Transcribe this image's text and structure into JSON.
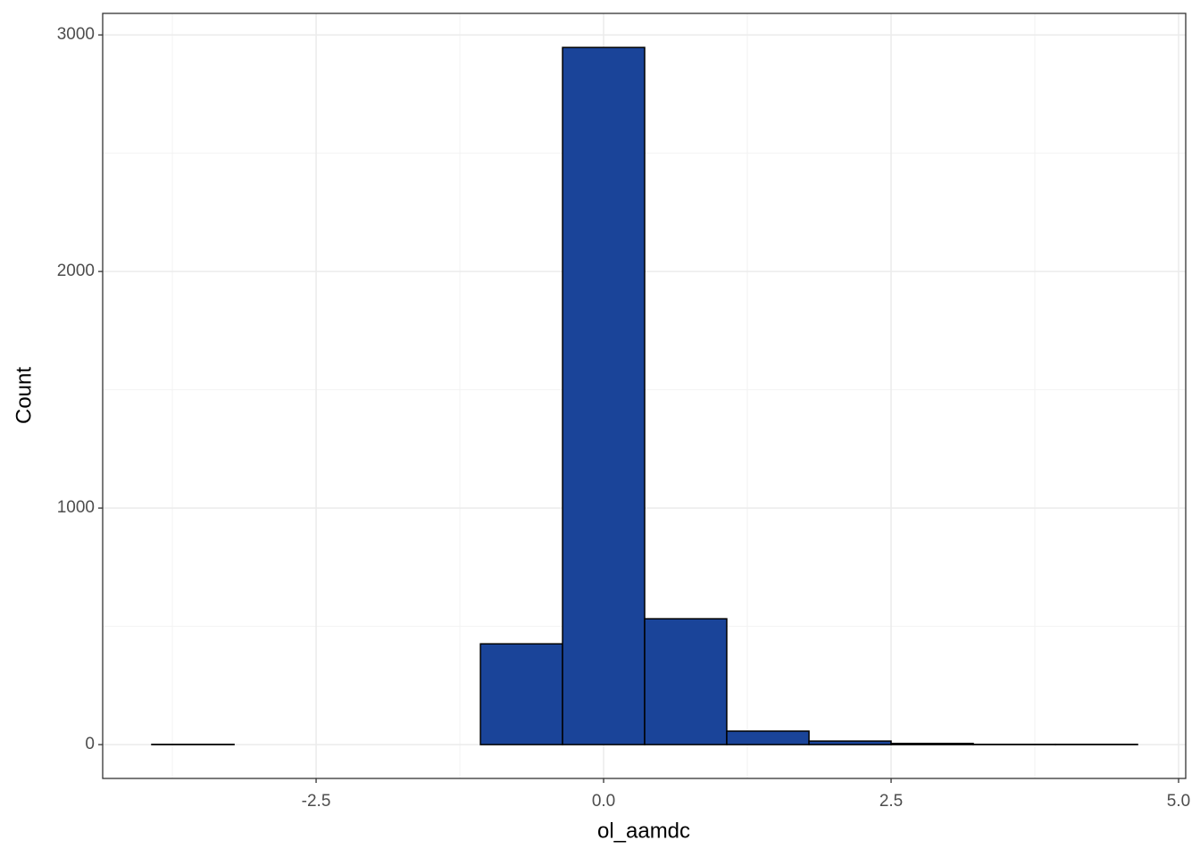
{
  "chart_data": {
    "type": "histogram",
    "x_label": "ol_aamdc",
    "y_label": "Count",
    "bins": [
      -3.929,
      -3.214,
      -2.5,
      -1.786,
      -1.071,
      -0.357,
      0.357,
      1.071,
      1.786,
      2.5,
      3.214,
      3.929,
      4.643
    ],
    "values": [
      1,
      0,
      0,
      0,
      426,
      2947,
      532,
      57,
      15,
      5,
      1,
      1
    ],
    "color": "#1a4499",
    "xlim": [
      -4.356,
      5.062
    ],
    "ylim": [
      -143,
      3091
    ],
    "xticks": [
      -2.5,
      {
        "value": 0,
        "label": "0.0"
      },
      2.5,
      {
        "value": 5,
        "label": "5.0"
      }
    ],
    "yticks": [
      0,
      1000,
      2000,
      3000
    ],
    "grid": true
  }
}
